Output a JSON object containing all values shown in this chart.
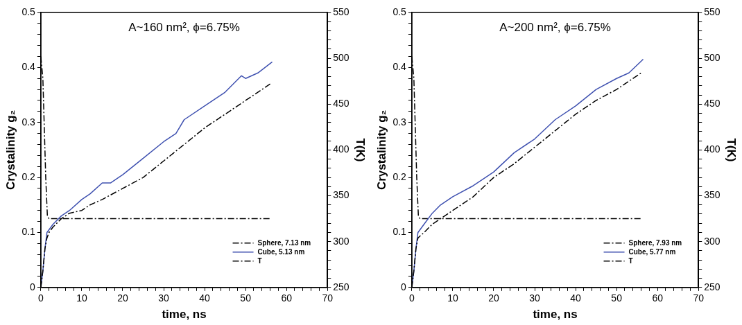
{
  "chart_data": [
    {
      "type": "line",
      "title": "A~160 nm², ϕ=6.75%",
      "xlabel": "time, ns",
      "ylabel": "Crystalinity g₂",
      "y2label": "T(K)",
      "xlim": [
        0,
        70
      ],
      "xticks": [
        0,
        {
          "value": 2,
          "label": null
        },
        {
          "value": 4,
          "label": null
        },
        {
          "value": 6,
          "label": null
        },
        {
          "value": 8,
          "label": null
        },
        10,
        {
          "value": 12,
          "label": null
        },
        {
          "value": 14,
          "label": null
        },
        {
          "value": 16,
          "label": null
        },
        {
          "value": 18,
          "label": null
        },
        20,
        {
          "value": 22,
          "label": null
        },
        {
          "value": 24,
          "label": null
        },
        {
          "value": 26,
          "label": null
        },
        {
          "value": 28,
          "label": null
        },
        30,
        {
          "value": 32,
          "label": null
        },
        {
          "value": 34,
          "label": null
        },
        {
          "value": 36,
          "label": null
        },
        {
          "value": 38,
          "label": null
        },
        40,
        {
          "value": 42,
          "label": null
        },
        {
          "value": 44,
          "label": null
        },
        {
          "value": 46,
          "label": null
        },
        {
          "value": 48,
          "label": null
        },
        50,
        {
          "value": 52,
          "label": null
        },
        {
          "value": 54,
          "label": null
        },
        {
          "value": 56,
          "label": null
        },
        {
          "value": 58,
          "label": null
        },
        60,
        {
          "value": 62,
          "label": null
        },
        {
          "value": 64,
          "label": null
        },
        {
          "value": 66,
          "label": null
        },
        {
          "value": 68,
          "label": null
        },
        70
      ],
      "ylim": [
        0,
        0.5
      ],
      "yticks": [
        0,
        {
          "value": 0.02,
          "label": null
        },
        {
          "value": 0.04,
          "label": null
        },
        {
          "value": 0.06,
          "label": null
        },
        {
          "value": 0.08,
          "label": null
        },
        0.1,
        {
          "value": 0.12,
          "label": null
        },
        {
          "value": 0.14,
          "label": null
        },
        {
          "value": 0.16,
          "label": null
        },
        {
          "value": 0.18,
          "label": null
        },
        0.2,
        {
          "value": 0.22,
          "label": null
        },
        {
          "value": 0.24,
          "label": null
        },
        {
          "value": 0.26,
          "label": null
        },
        {
          "value": 0.28,
          "label": null
        },
        0.3,
        {
          "value": 0.32,
          "label": null
        },
        {
          "value": 0.34,
          "label": null
        },
        {
          "value": 0.36,
          "label": null
        },
        {
          "value": 0.38,
          "label": null
        },
        0.4,
        {
          "value": 0.42,
          "label": null
        },
        {
          "value": 0.44,
          "label": null
        },
        {
          "value": 0.46,
          "label": null
        },
        {
          "value": 0.48,
          "label": null
        },
        0.5
      ],
      "y2lim": [
        250,
        550
      ],
      "y2ticks": [
        250,
        {
          "value": 260,
          "label": null
        },
        {
          "value": 270,
          "label": null
        },
        {
          "value": 280,
          "label": null
        },
        {
          "value": 290,
          "label": null
        },
        300,
        {
          "value": 310,
          "label": null
        },
        {
          "value": 320,
          "label": null
        },
        {
          "value": 330,
          "label": null
        },
        {
          "value": 340,
          "label": null
        },
        350,
        {
          "value": 360,
          "label": null
        },
        {
          "value": 370,
          "label": null
        },
        {
          "value": 380,
          "label": null
        },
        {
          "value": 390,
          "label": null
        },
        400,
        {
          "value": 410,
          "label": null
        },
        {
          "value": 420,
          "label": null
        },
        {
          "value": 430,
          "label": null
        },
        {
          "value": 440,
          "label": null
        },
        450,
        {
          "value": 460,
          "label": null
        },
        {
          "value": 470,
          "label": null
        },
        {
          "value": 480,
          "label": null
        },
        {
          "value": 490,
          "label": null
        },
        500,
        {
          "value": 510,
          "label": null
        },
        {
          "value": 520,
          "label": null
        },
        {
          "value": 530,
          "label": null
        },
        {
          "value": 540,
          "label": null
        },
        550
      ],
      "legend": "bottom right",
      "grid": false,
      "marker": "none",
      "series": [
        {
          "name": "Sphere, 7.13 nm",
          "color": "#000000",
          "line_style": "dashed",
          "x": [
            0,
            0.5,
            1,
            1.5,
            2,
            3,
            5,
            7,
            10,
            12,
            15,
            20,
            25,
            30,
            35,
            40,
            45,
            50,
            56
          ],
          "values": [
            0,
            0.03,
            0.07,
            0.09,
            0.1,
            0.11,
            0.125,
            0.135,
            0.14,
            0.15,
            0.16,
            0.18,
            0.2,
            0.23,
            0.26,
            0.29,
            0.315,
            0.34,
            0.37
          ]
        },
        {
          "name": "Cube, 5.13 nm",
          "color": "#3f51b0",
          "line_style": "solid",
          "x": [
            0,
            0.5,
            1,
            1.5,
            2,
            3,
            5,
            7,
            10,
            12,
            15,
            17,
            20,
            25,
            30,
            33,
            35,
            40,
            45,
            49,
            50,
            53,
            56.5
          ],
          "values": [
            0,
            0.03,
            0.07,
            0.1,
            0.105,
            0.115,
            0.13,
            0.14,
            0.16,
            0.17,
            0.19,
            0.19,
            0.205,
            0.235,
            0.265,
            0.28,
            0.305,
            0.33,
            0.355,
            0.385,
            0.38,
            0.39,
            0.41
          ]
        },
        {
          "name": "T",
          "color": "#000000",
          "line_style": "dashed",
          "axis": "y2",
          "x": [
            0,
            0.5,
            1.2,
            1.6,
            2,
            56
          ],
          "values": [
            502,
            478,
            370,
            328,
            325,
            325
          ]
        }
      ]
    },
    {
      "type": "line",
      "title": "A~200 nm², ϕ=6.75%",
      "xlabel": "time, ns",
      "ylabel": "Crystalinity g₂",
      "y2label": "T(K)",
      "xlim": [
        0,
        70
      ],
      "xticks": [
        0,
        {
          "value": 2,
          "label": null
        },
        {
          "value": 4,
          "label": null
        },
        {
          "value": 6,
          "label": null
        },
        {
          "value": 8,
          "label": null
        },
        10,
        {
          "value": 12,
          "label": null
        },
        {
          "value": 14,
          "label": null
        },
        {
          "value": 16,
          "label": null
        },
        {
          "value": 18,
          "label": null
        },
        20,
        {
          "value": 22,
          "label": null
        },
        {
          "value": 24,
          "label": null
        },
        {
          "value": 26,
          "label": null
        },
        {
          "value": 28,
          "label": null
        },
        30,
        {
          "value": 32,
          "label": null
        },
        {
          "value": 34,
          "label": null
        },
        {
          "value": 36,
          "label": null
        },
        {
          "value": 38,
          "label": null
        },
        40,
        {
          "value": 42,
          "label": null
        },
        {
          "value": 44,
          "label": null
        },
        {
          "value": 46,
          "label": null
        },
        {
          "value": 48,
          "label": null
        },
        50,
        {
          "value": 52,
          "label": null
        },
        {
          "value": 54,
          "label": null
        },
        {
          "value": 56,
          "label": null
        },
        {
          "value": 58,
          "label": null
        },
        60,
        {
          "value": 62,
          "label": null
        },
        {
          "value": 64,
          "label": null
        },
        {
          "value": 66,
          "label": null
        },
        {
          "value": 68,
          "label": null
        },
        70
      ],
      "ylim": [
        0,
        0.5
      ],
      "yticks": [
        0,
        {
          "value": 0.02,
          "label": null
        },
        {
          "value": 0.04,
          "label": null
        },
        {
          "value": 0.06,
          "label": null
        },
        {
          "value": 0.08,
          "label": null
        },
        0.1,
        {
          "value": 0.12,
          "label": null
        },
        {
          "value": 0.14,
          "label": null
        },
        {
          "value": 0.16,
          "label": null
        },
        {
          "value": 0.18,
          "label": null
        },
        0.2,
        {
          "value": 0.22,
          "label": null
        },
        {
          "value": 0.24,
          "label": null
        },
        {
          "value": 0.26,
          "label": null
        },
        {
          "value": 0.28,
          "label": null
        },
        0.3,
        {
          "value": 0.32,
          "label": null
        },
        {
          "value": 0.34,
          "label": null
        },
        {
          "value": 0.36,
          "label": null
        },
        {
          "value": 0.38,
          "label": null
        },
        0.4,
        {
          "value": 0.42,
          "label": null
        },
        {
          "value": 0.44,
          "label": null
        },
        {
          "value": 0.46,
          "label": null
        },
        {
          "value": 0.48,
          "label": null
        },
        0.5
      ],
      "y2lim": [
        250,
        550
      ],
      "y2ticks": [
        250,
        {
          "value": 260,
          "label": null
        },
        {
          "value": 270,
          "label": null
        },
        {
          "value": 280,
          "label": null
        },
        {
          "value": 290,
          "label": null
        },
        300,
        {
          "value": 310,
          "label": null
        },
        {
          "value": 320,
          "label": null
        },
        {
          "value": 330,
          "label": null
        },
        {
          "value": 340,
          "label": null
        },
        350,
        {
          "value": 360,
          "label": null
        },
        {
          "value": 370,
          "label": null
        },
        {
          "value": 380,
          "label": null
        },
        {
          "value": 390,
          "label": null
        },
        400,
        {
          "value": 410,
          "label": null
        },
        {
          "value": 420,
          "label": null
        },
        {
          "value": 430,
          "label": null
        },
        {
          "value": 440,
          "label": null
        },
        450,
        {
          "value": 460,
          "label": null
        },
        {
          "value": 470,
          "label": null
        },
        {
          "value": 480,
          "label": null
        },
        {
          "value": 490,
          "label": null
        },
        500,
        {
          "value": 510,
          "label": null
        },
        {
          "value": 520,
          "label": null
        },
        {
          "value": 530,
          "label": null
        },
        {
          "value": 540,
          "label": null
        },
        550
      ],
      "legend": "bottom right",
      "grid": false,
      "marker": "none",
      "series": [
        {
          "name": "Sphere, 7.93 nm",
          "color": "#000000",
          "line_style": "dashed",
          "x": [
            0,
            0.5,
            1,
            1.5,
            3,
            5,
            7,
            10,
            15,
            20,
            25,
            30,
            35,
            40,
            45,
            50,
            56
          ],
          "values": [
            0,
            0.03,
            0.07,
            0.09,
            0.1,
            0.115,
            0.125,
            0.14,
            0.165,
            0.2,
            0.225,
            0.255,
            0.285,
            0.315,
            0.34,
            0.36,
            0.39
          ]
        },
        {
          "name": "Cube, 5.77 nm",
          "color": "#3f51b0",
          "line_style": "solid",
          "x": [
            0,
            0.5,
            1,
            1.5,
            3,
            5,
            7,
            10,
            15,
            20,
            25,
            30,
            35,
            40,
            45,
            50,
            53,
            56.5
          ],
          "values": [
            0,
            0.03,
            0.07,
            0.1,
            0.115,
            0.135,
            0.15,
            0.165,
            0.185,
            0.21,
            0.245,
            0.27,
            0.305,
            0.33,
            0.36,
            0.38,
            0.39,
            0.415
          ]
        },
        {
          "name": "T",
          "color": "#000000",
          "line_style": "dashed",
          "axis": "y2",
          "x": [
            0,
            0.5,
            1.2,
            1.6,
            2,
            56
          ],
          "values": [
            502,
            478,
            370,
            328,
            325,
            325
          ]
        }
      ]
    }
  ]
}
